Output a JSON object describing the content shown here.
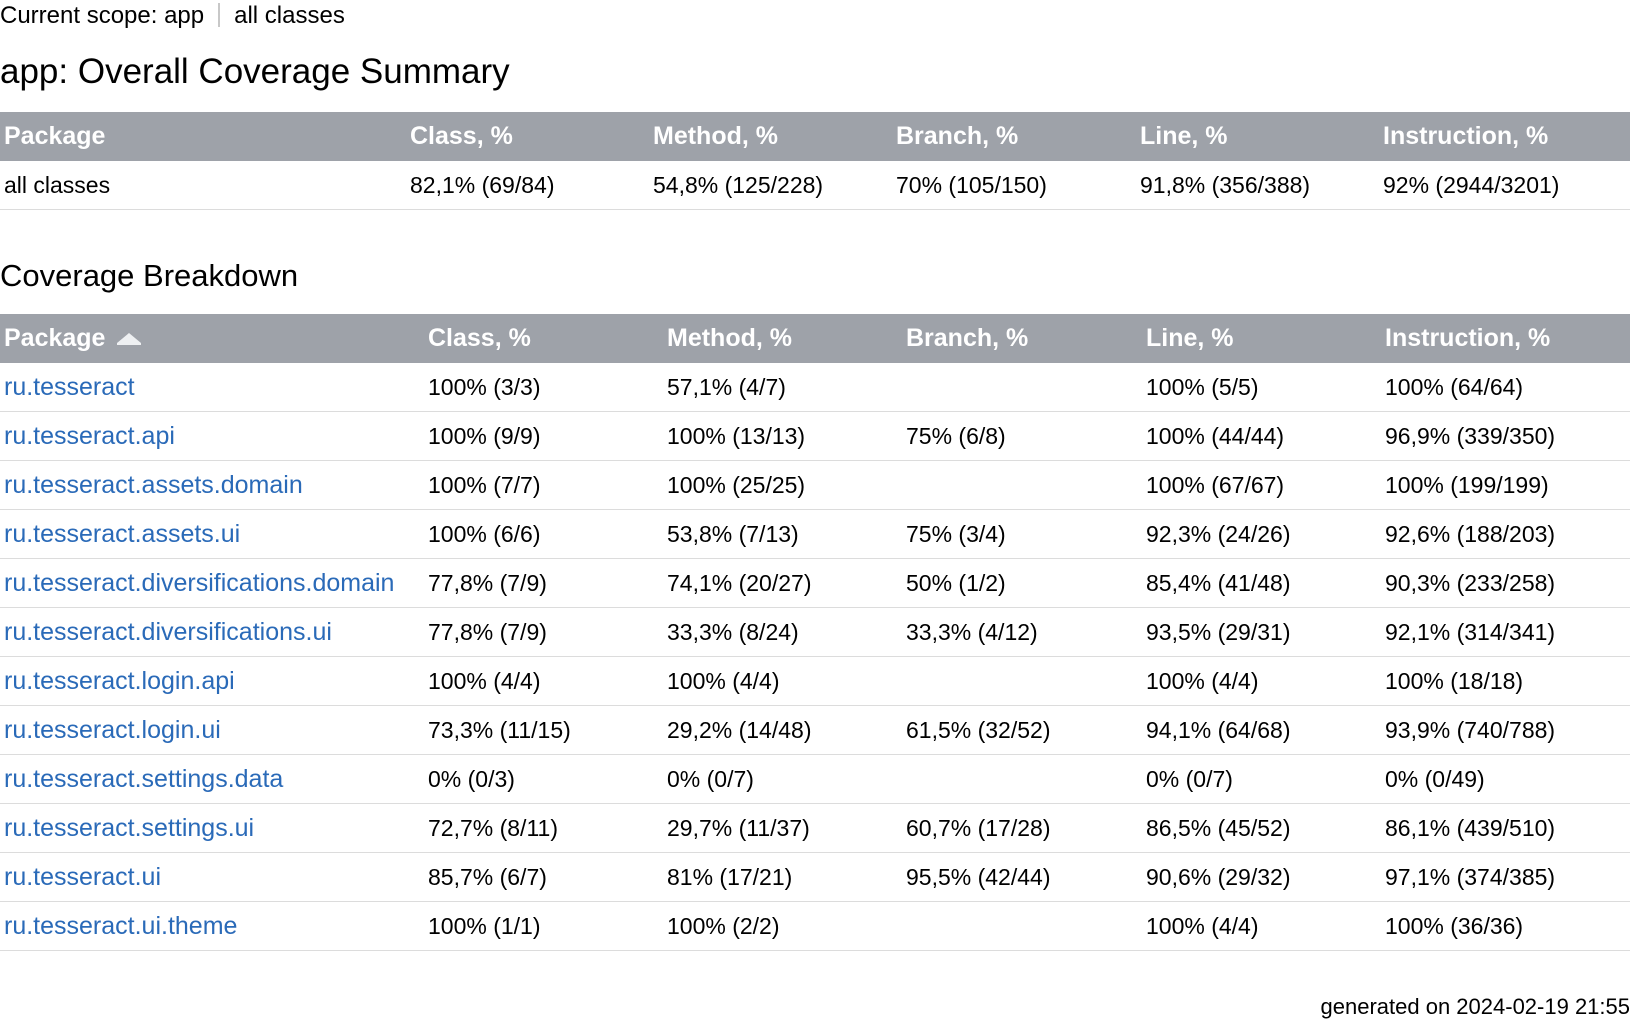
{
  "header": {
    "scope_prefix": "Current scope: app",
    "scope_current": "all classes"
  },
  "summary": {
    "title": "app: Overall Coverage Summary",
    "columns": [
      "Package",
      "Class, %",
      "Method, %",
      "Branch, %",
      "Line, %",
      "Instruction, %"
    ],
    "row": [
      "all classes",
      "82,1% (69/84)",
      "54,8% (125/228)",
      "70% (105/150)",
      "91,8% (356/388)",
      "92% (2944/3201)"
    ]
  },
  "breakdown": {
    "title": "Coverage Breakdown",
    "sort_icon": "sort-ascending-icon",
    "columns": [
      "Package",
      "Class, %",
      "Method, %",
      "Branch, %",
      "Line, %",
      "Instruction, %"
    ],
    "rows": [
      [
        "ru.tesseract",
        "100% (3/3)",
        "57,1% (4/7)",
        "",
        "100% (5/5)",
        "100% (64/64)"
      ],
      [
        "ru.tesseract.api",
        "100% (9/9)",
        "100% (13/13)",
        "75% (6/8)",
        "100% (44/44)",
        "96,9% (339/350)"
      ],
      [
        "ru.tesseract.assets.domain",
        "100% (7/7)",
        "100% (25/25)",
        "",
        "100% (67/67)",
        "100% (199/199)"
      ],
      [
        "ru.tesseract.assets.ui",
        "100% (6/6)",
        "53,8% (7/13)",
        "75% (3/4)",
        "92,3% (24/26)",
        "92,6% (188/203)"
      ],
      [
        "ru.tesseract.diversifications.domain",
        "77,8% (7/9)",
        "74,1% (20/27)",
        "50% (1/2)",
        "85,4% (41/48)",
        "90,3% (233/258)"
      ],
      [
        "ru.tesseract.diversifications.ui",
        "77,8% (7/9)",
        "33,3% (8/24)",
        "33,3% (4/12)",
        "93,5% (29/31)",
        "92,1% (314/341)"
      ],
      [
        "ru.tesseract.login.api",
        "100% (4/4)",
        "100% (4/4)",
        "",
        "100% (4/4)",
        "100% (18/18)"
      ],
      [
        "ru.tesseract.login.ui",
        "73,3% (11/15)",
        "29,2% (14/48)",
        "61,5% (32/52)",
        "94,1% (64/68)",
        "93,9% (740/788)"
      ],
      [
        "ru.tesseract.settings.data",
        "0% (0/3)",
        "0% (0/7)",
        "",
        "0% (0/7)",
        "0% (0/49)"
      ],
      [
        "ru.tesseract.settings.ui",
        "72,7% (8/11)",
        "29,7% (11/37)",
        "60,7% (17/28)",
        "86,5% (45/52)",
        "86,1% (439/510)"
      ],
      [
        "ru.tesseract.ui",
        "85,7% (6/7)",
        "81% (17/21)",
        "95,5% (42/44)",
        "90,6% (29/32)",
        "97,1% (374/385)"
      ],
      [
        "ru.tesseract.ui.theme",
        "100% (1/1)",
        "100% (2/2)",
        "",
        "100% (4/4)",
        "100% (36/36)"
      ]
    ]
  },
  "footer": {
    "generated": "generated on 2024-02-19 21:55"
  }
}
